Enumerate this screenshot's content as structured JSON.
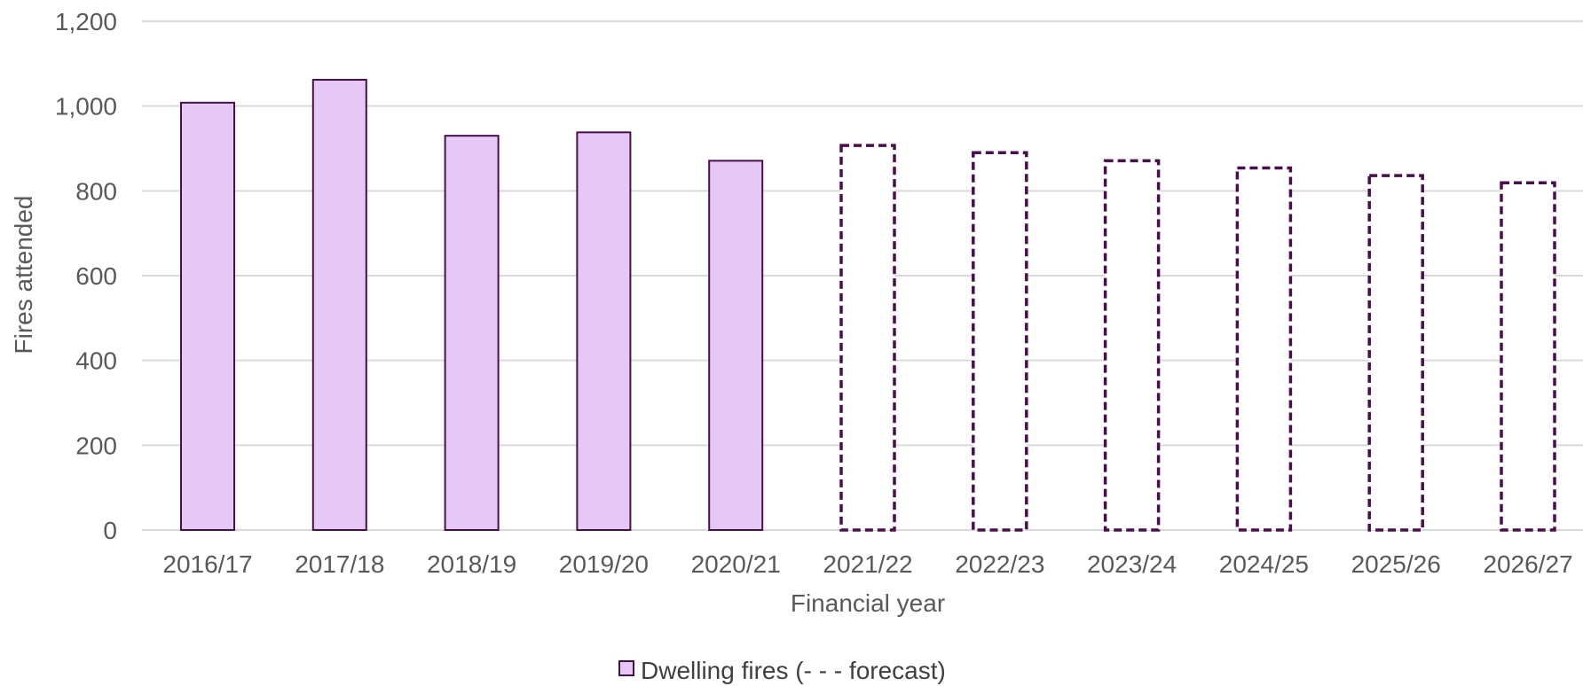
{
  "chart_data": {
    "type": "bar",
    "categories": [
      "2016/17",
      "2017/18",
      "2018/19",
      "2019/20",
      "2020/21",
      "2021/22",
      "2022/23",
      "2023/24",
      "2024/25",
      "2025/26",
      "2026/27"
    ],
    "values": [
      1008,
      1062,
      930,
      938,
      871,
      907,
      890,
      871,
      854,
      836,
      819
    ],
    "forecast": [
      false,
      false,
      false,
      false,
      false,
      true,
      true,
      true,
      true,
      true,
      true
    ],
    "series": [
      {
        "name": "Dwelling fires (- - - forecast)",
        "values": [
          1008,
          1062,
          930,
          938,
          871,
          907,
          890,
          871,
          854,
          836,
          819
        ]
      }
    ],
    "xlabel": "Financial year",
    "ylabel": "Fires attended",
    "ylim": [
      0,
      1200
    ],
    "yticks": [
      0,
      200,
      400,
      600,
      800,
      1000,
      1200
    ],
    "ytick_labels": [
      "0",
      "200",
      "400",
      "600",
      "800",
      "1,000",
      "1,200"
    ],
    "grid": true,
    "legend_position": "bottom",
    "colors": {
      "bar_fill": "#e5c8f5",
      "bar_outline": "#4a0e4e",
      "gridline": "#d9d9d9",
      "text": "#595959"
    }
  }
}
